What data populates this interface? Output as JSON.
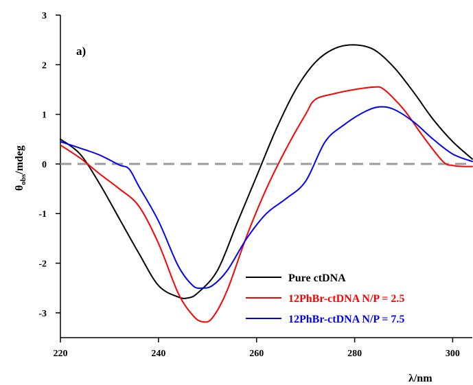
{
  "chart_data": {
    "type": "line",
    "panel_label": "a)",
    "xlabel": "λ/nm",
    "ylabel_main": "θ",
    "ylabel_sub": "obs",
    "ylabel_rest": "/mdeg",
    "xlim": [
      220,
      304
    ],
    "ylim": [
      -3.5,
      3
    ],
    "xticks": [
      220,
      240,
      260,
      280,
      300
    ],
    "yticks": [
      -3,
      -2,
      -1,
      0,
      1,
      2,
      3
    ],
    "reference_line": {
      "y": 0,
      "style": "dashed",
      "color": "#9a9a9a"
    },
    "legend_position": "bottom-right",
    "series": [
      {
        "name": "Pure ctDNA",
        "color": "#000000",
        "x": [
          220,
          224,
          228,
          232,
          236,
          240,
          244,
          246,
          248,
          252,
          256,
          260,
          264,
          268,
          272,
          276,
          280,
          284,
          288,
          292,
          296,
          300,
          304
        ],
        "y": [
          0.5,
          0.2,
          -0.4,
          -1.1,
          -1.8,
          -2.45,
          -2.68,
          -2.7,
          -2.6,
          -2.15,
          -1.2,
          -0.25,
          0.7,
          1.5,
          2.05,
          2.33,
          2.4,
          2.3,
          1.95,
          1.45,
          0.9,
          0.45,
          0.1
        ]
      },
      {
        "name": "12PhBr-ctDNA N/P = 2.5",
        "color": "#ff0000",
        "x": [
          220,
          224,
          228,
          232,
          236,
          240,
          244,
          247,
          249,
          251,
          254,
          258,
          262,
          266,
          270,
          272,
          276,
          280,
          284,
          286,
          290,
          294,
          298,
          300,
          302,
          304
        ],
        "y": [
          0.38,
          0.12,
          -0.2,
          -0.5,
          -0.85,
          -1.6,
          -2.6,
          -3.05,
          -3.18,
          -3.1,
          -2.55,
          -1.45,
          -0.5,
          0.3,
          1.0,
          1.3,
          1.42,
          1.5,
          1.55,
          1.5,
          1.1,
          0.55,
          0.05,
          -0.03,
          -0.05,
          -0.05
        ]
      },
      {
        "name": "12PhBr-ctDNA N/P = 7.5",
        "color": "#0000ff",
        "x": [
          220,
          224,
          228,
          232,
          234,
          236,
          240,
          244,
          247,
          249,
          251,
          254,
          258,
          262,
          266,
          270,
          274,
          278,
          282,
          285,
          288,
          292,
          296,
          300,
          304
        ],
        "y": [
          0.45,
          0.32,
          0.18,
          -0.02,
          -0.1,
          -0.45,
          -1.15,
          -2.05,
          -2.45,
          -2.5,
          -2.45,
          -2.15,
          -1.5,
          -1.0,
          -0.7,
          -0.35,
          0.45,
          0.8,
          1.05,
          1.15,
          1.1,
          0.85,
          0.5,
          0.2,
          0.05
        ]
      }
    ]
  }
}
